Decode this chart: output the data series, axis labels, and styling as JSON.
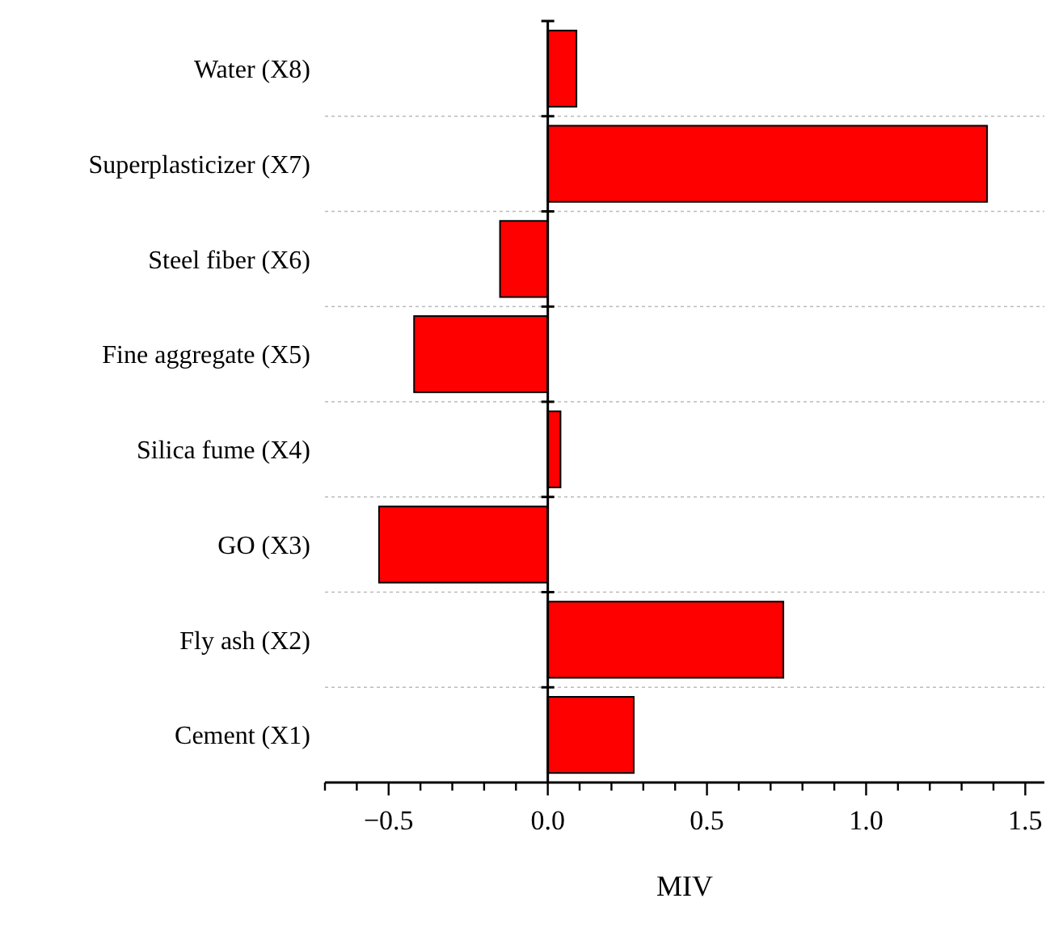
{
  "chart_data": {
    "type": "bar",
    "orientation": "horizontal",
    "xlabel": "MIV",
    "categories": [
      "Water (X8)",
      "Superplasticizer (X7)",
      "Steel fiber (X6)",
      "Fine aggregate (X5)",
      "Silica fume (X4)",
      "GO (X3)",
      "Fly ash (X2)",
      "Cement (X1)"
    ],
    "values": [
      0.09,
      1.38,
      -0.15,
      -0.42,
      0.04,
      -0.53,
      0.74,
      0.27
    ],
    "color": "#ff0000",
    "xlim": [
      -0.7,
      1.56
    ],
    "xticks": [
      {
        "value": -0.7,
        "label": null
      },
      {
        "value": -0.6,
        "label": null
      },
      {
        "value": -0.5,
        "label": "−0.5"
      },
      {
        "value": -0.4,
        "label": null
      },
      {
        "value": -0.3,
        "label": null
      },
      {
        "value": -0.2,
        "label": null
      },
      {
        "value": -0.1,
        "label": null
      },
      {
        "value": 0,
        "label": "0.0"
      },
      {
        "value": 0.1,
        "label": null
      },
      {
        "value": 0.2,
        "label": null
      },
      {
        "value": 0.3,
        "label": null
      },
      {
        "value": 0.4,
        "label": null
      },
      {
        "value": 0.5,
        "label": "0.5"
      },
      {
        "value": 0.6,
        "label": null
      },
      {
        "value": 0.7,
        "label": null
      },
      {
        "value": 0.8,
        "label": null
      },
      {
        "value": 0.9,
        "label": null
      },
      {
        "value": 1,
        "label": "1.0"
      },
      {
        "value": 1.1,
        "label": null
      },
      {
        "value": 1.2,
        "label": null
      },
      {
        "value": 1.3,
        "label": null
      },
      {
        "value": 1.4,
        "label": null
      },
      {
        "value": 1.5,
        "label": "1.5"
      }
    ],
    "grid": "y"
  }
}
